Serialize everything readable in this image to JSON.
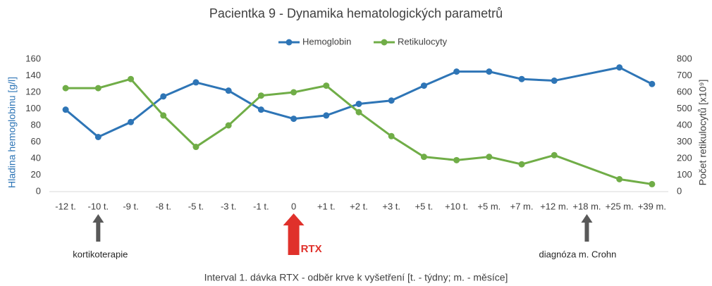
{
  "chart_data": {
    "type": "line",
    "title": "Pacientka 9 - Dynamika hematologických parametrů",
    "categories": [
      "-12 t.",
      "-10 t.",
      "-9 t.",
      "-8 t.",
      "-5 t.",
      "-3 t.",
      "-1 t.",
      "0",
      "+1 t.",
      "+2 t.",
      "+3 t.",
      "+5 t.",
      "+10 t.",
      "+5 m.",
      "+7 m.",
      "+12 m.",
      "+18 m.",
      "+25 m.",
      "+39 m."
    ],
    "series": [
      {
        "name": "Hemoglobin",
        "color": "#2e75b6",
        "values": [
          99,
          66,
          84,
          115,
          132,
          122,
          99,
          88,
          92,
          106,
          110,
          128,
          145,
          145,
          136,
          134,
          null,
          150,
          130
        ]
      },
      {
        "name": "Retikulocyty",
        "color": "#70ad47",
        "axis": "y2",
        "values": [
          625,
          625,
          680,
          460,
          270,
          400,
          580,
          600,
          640,
          480,
          335,
          210,
          190,
          210,
          165,
          220,
          null,
          75,
          45
        ]
      }
    ],
    "connect_nulls": true,
    "ylabel": "Hladina hemoglobinu [g/l]",
    "y2label": "Počet retikulocytů [x10⁹]",
    "xlabel": "Interval 1. dávka RTX - odběr krve k vyšetření [t. - týdny; m. - měsíce]",
    "ylim": [
      0,
      160
    ],
    "yticks": [
      0,
      20,
      40,
      60,
      80,
      100,
      120,
      140,
      160
    ],
    "y2lim": [
      0,
      800
    ],
    "y2ticks": [
      0,
      100,
      200,
      300,
      400,
      500,
      600,
      700,
      800
    ],
    "grid": false,
    "legend": "top",
    "annotations": [
      {
        "text": "kortikoterapie",
        "category": "-10 t.",
        "color": "#595959"
      },
      {
        "text": "RTX",
        "category": "0",
        "color": "#e0312b"
      },
      {
        "text": "diagnóza m. Crohn",
        "category": "+18 m.",
        "color": "#595959"
      }
    ]
  }
}
